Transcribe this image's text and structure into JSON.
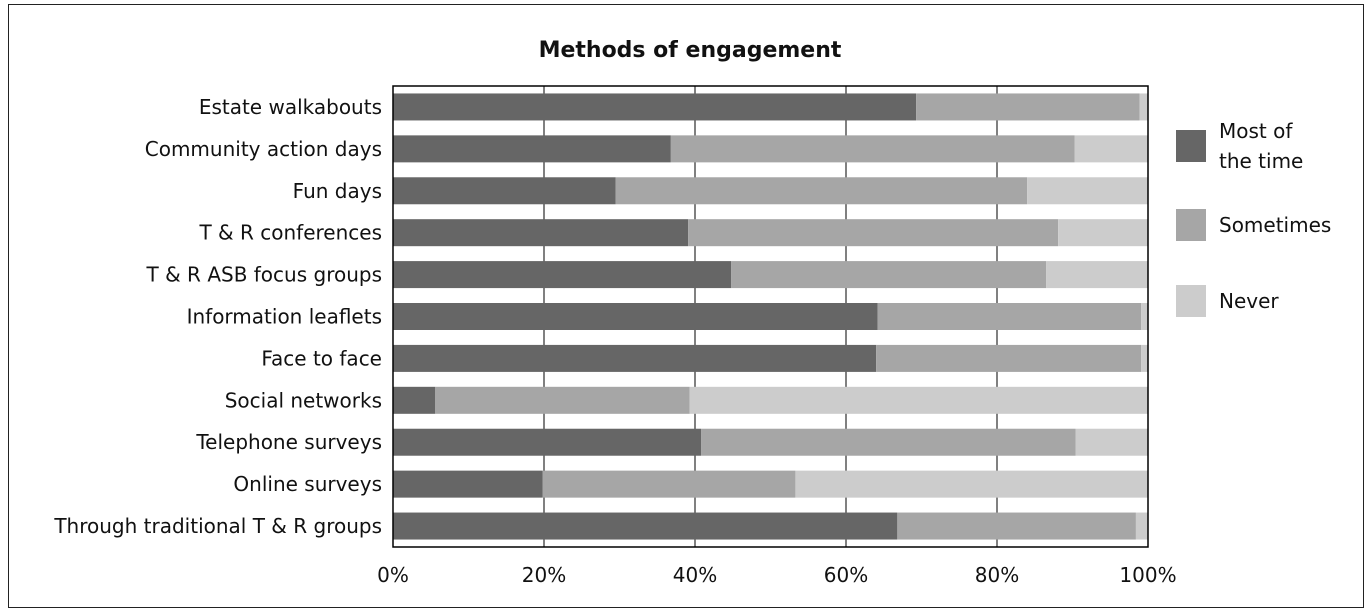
{
  "chart_data": {
    "type": "bar",
    "orientation": "horizontal",
    "stacked": true,
    "title": "Methods of engagement",
    "xlabel": "",
    "ylabel": "",
    "xlim": [
      0,
      100
    ],
    "x_ticks": [
      "0%",
      "20%",
      "40%",
      "60%",
      "80%",
      "100%"
    ],
    "x_tick_values": [
      0,
      20,
      40,
      60,
      80,
      100
    ],
    "grid": "vertical",
    "legend_position": "right",
    "categories": [
      "Estate walkabouts",
      "Community action days",
      "Fun days",
      "T & R conferences",
      "T & R ASB focus groups",
      "Information leaflets",
      "Face to face",
      "Social networks",
      "Telephone surveys",
      "Online surveys",
      "Through traditional T & R groups"
    ],
    "series": [
      {
        "name": "Most of the time",
        "legend_lines": [
          "Most of",
          "the time"
        ],
        "color": "#666666",
        "values": [
          69.3,
          36.8,
          29.5,
          39.1,
          44.8,
          64.2,
          64.0,
          5.6,
          40.8,
          19.8,
          66.8
        ]
      },
      {
        "name": "Sometimes",
        "legend_lines": [
          "Sometimes"
        ],
        "color": "#a6a6a6",
        "values": [
          29.6,
          53.5,
          54.5,
          49.0,
          41.7,
          34.9,
          35.1,
          33.7,
          49.6,
          33.5,
          31.6
        ]
      },
      {
        "name": "Never",
        "legend_lines": [
          "Never"
        ],
        "color": "#cccccc",
        "values": [
          1.1,
          9.7,
          16.0,
          11.9,
          13.5,
          0.9,
          0.9,
          60.7,
          9.6,
          46.7,
          1.6
        ]
      }
    ]
  }
}
